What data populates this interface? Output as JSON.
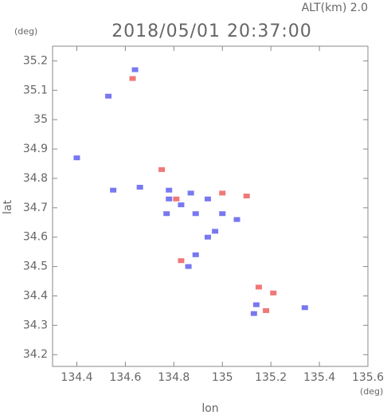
{
  "chart_data": {
    "type": "scatter",
    "title": "2018/05/01 20:37:00",
    "subtitle": "ALT(km)  2.0",
    "xlabel": "lon",
    "ylabel": "lat",
    "x_unit": "(deg)",
    "y_unit": "(deg)",
    "xlim": [
      134.3,
      135.6
    ],
    "ylim": [
      34.16,
      35.25
    ],
    "xticks": [
      134.4,
      134.6,
      134.8,
      135.0,
      135.2,
      135.4,
      135.6
    ],
    "yticks": [
      34.2,
      34.3,
      34.4,
      34.5,
      34.6,
      34.7,
      34.8,
      34.9,
      35.0,
      35.1,
      35.2
    ],
    "series": [
      {
        "color": "#7878f0",
        "x": [
          134.64,
          134.53,
          134.4,
          134.55,
          134.66,
          134.78,
          134.87,
          134.94,
          134.77,
          134.89,
          135.0,
          134.97,
          134.94,
          134.89,
          134.86,
          135.06,
          135.14,
          135.13,
          135.34,
          134.78,
          134.83
        ],
        "y": [
          35.17,
          35.08,
          34.87,
          34.76,
          34.77,
          34.76,
          34.75,
          34.73,
          34.68,
          34.68,
          34.68,
          34.62,
          34.6,
          34.54,
          34.5,
          34.66,
          34.37,
          34.34,
          34.36,
          34.73,
          34.71
        ]
      },
      {
        "color": "#f07878",
        "x": [
          134.63,
          134.75,
          134.81,
          135.0,
          134.83,
          135.1,
          135.15,
          135.21,
          135.18
        ],
        "y": [
          35.14,
          34.83,
          34.73,
          34.75,
          34.52,
          34.74,
          34.43,
          34.41,
          34.35
        ]
      }
    ]
  }
}
